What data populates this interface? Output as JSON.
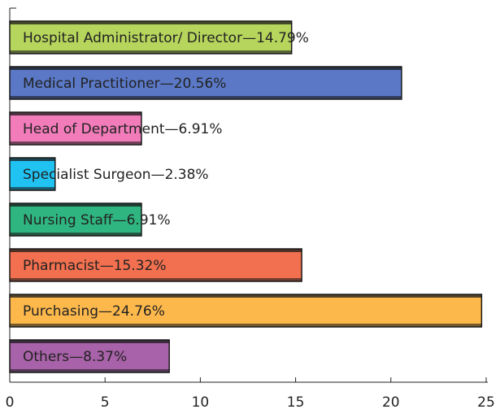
{
  "chart_data": {
    "type": "bar",
    "orientation": "horizontal",
    "categories": [
      "Hospital Administrator/ Director—14.79%",
      "Medical Practitioner—20.56%",
      "Head of Department—6.91%",
      "Specialist Surgeon—2.38%",
      "Nursing Staff—6.91%",
      "Pharmacist—15.32%",
      "Purchasing—24.76%",
      "Others—8.37%"
    ],
    "values": [
      14.79,
      20.56,
      6.91,
      2.38,
      6.91,
      15.32,
      24.76,
      8.37
    ],
    "colors": [
      "#b6d55c",
      "#5a78c6",
      "#f27cba",
      "#20c2f2",
      "#2fb57f",
      "#f2704f",
      "#fdb84c",
      "#a862a9"
    ],
    "xlim": [
      0,
      25
    ],
    "xticks": [
      0,
      5,
      10,
      15,
      20,
      25
    ],
    "grid": false
  }
}
